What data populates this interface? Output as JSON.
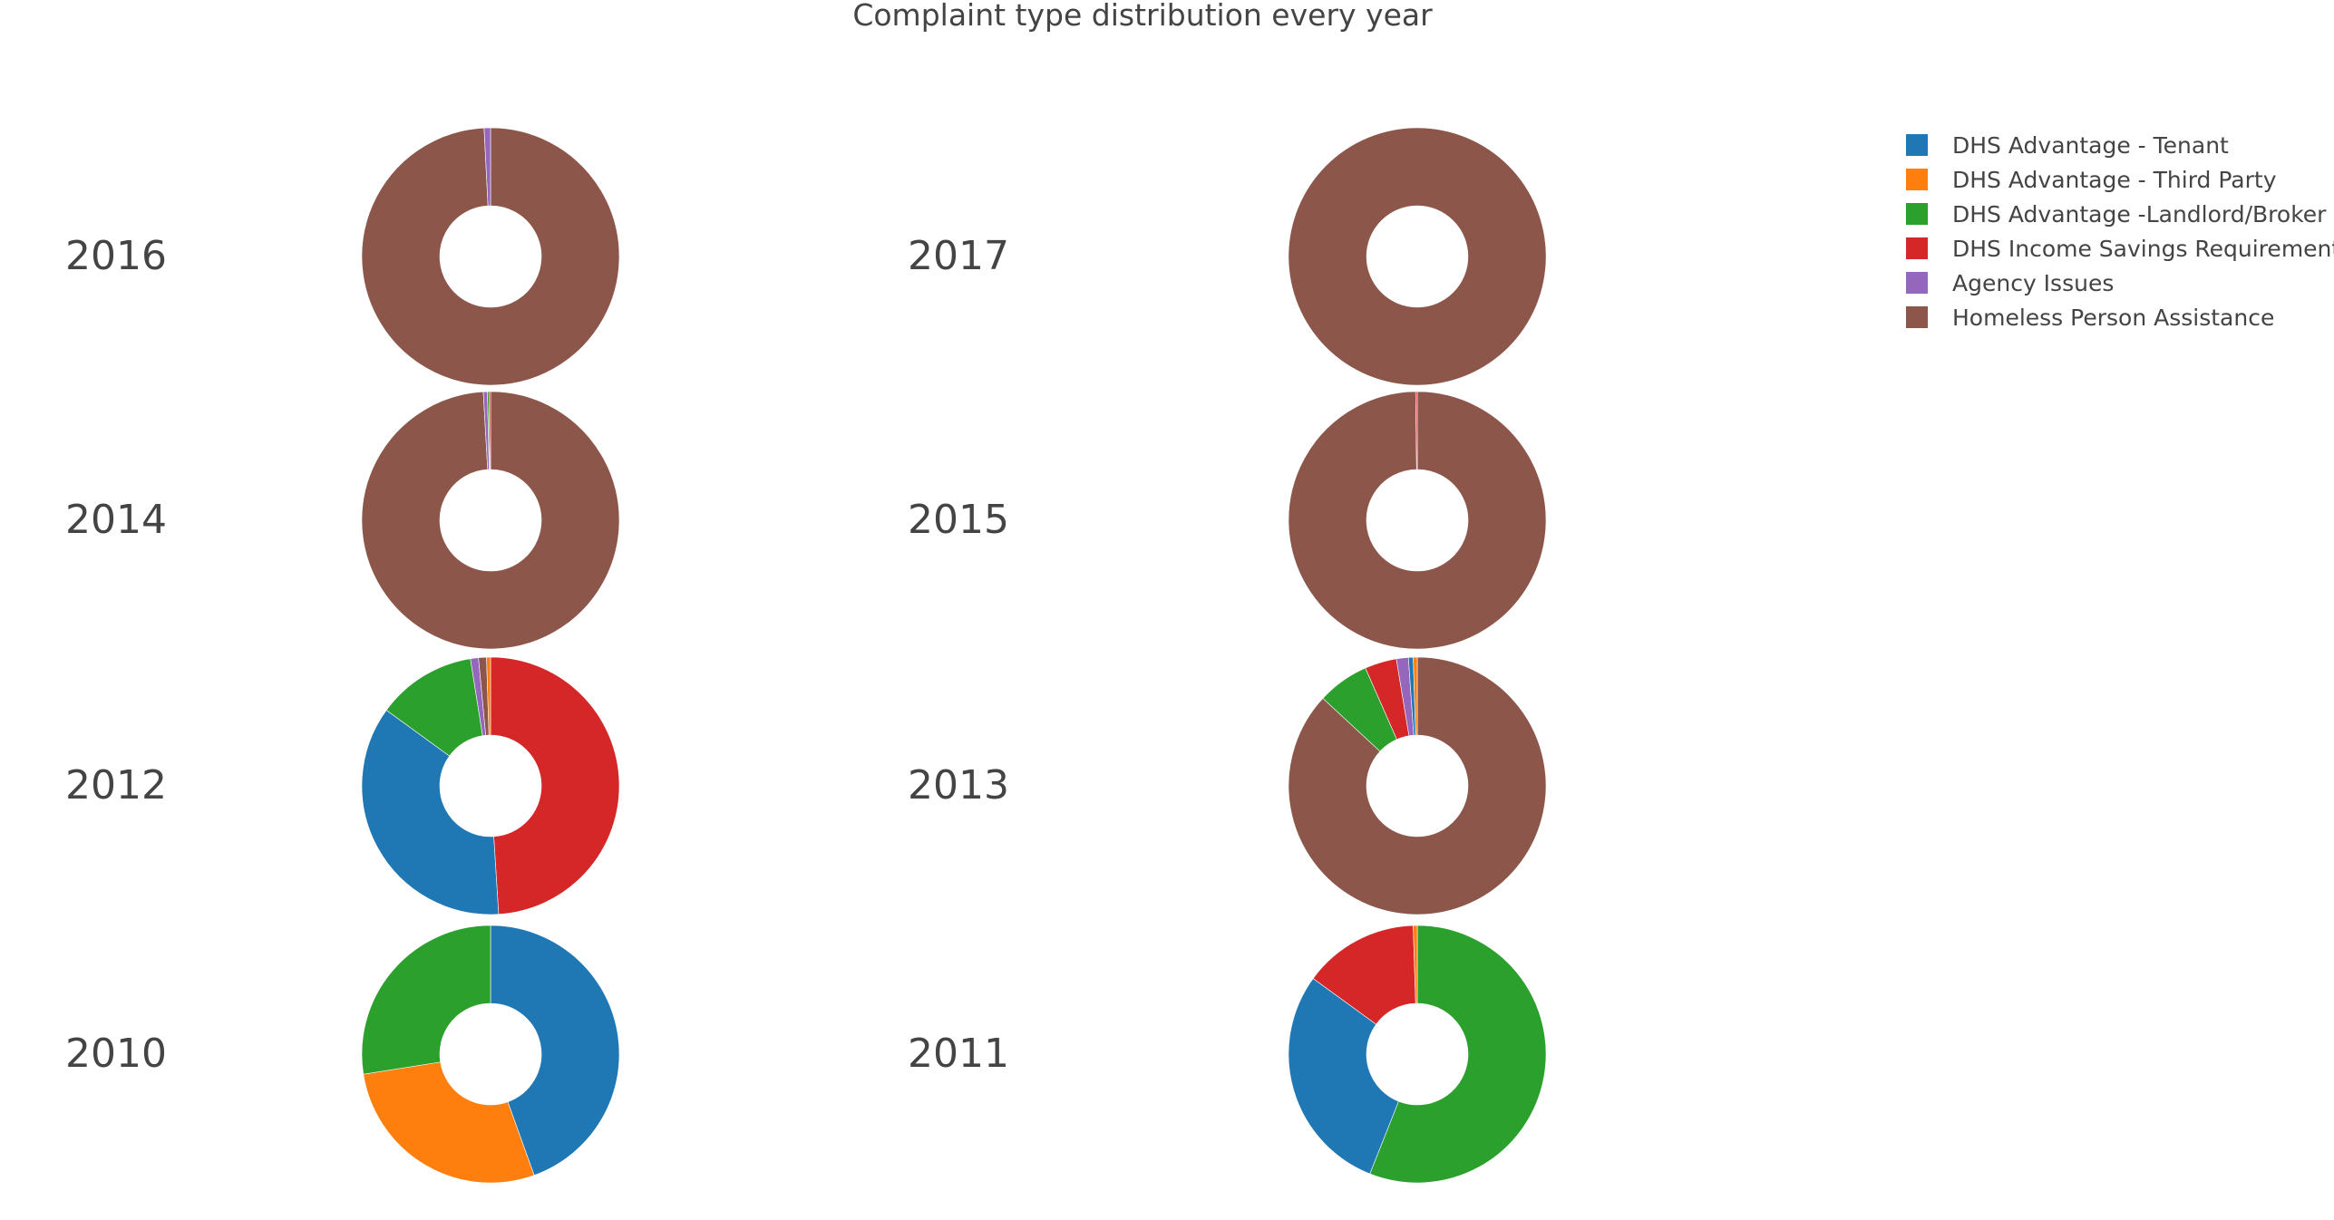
{
  "chart_data": {
    "type": "pie",
    "hole": true,
    "title": "Complaint type distribution every year",
    "legend": {
      "placement": "top-right",
      "entries": [
        {
          "label": "DHS Advantage - Tenant",
          "color": "#1f77b4"
        },
        {
          "label": "DHS Advantage - Third Party",
          "color": "#ff7f0e"
        },
        {
          "label": "DHS Advantage -Landlord/Broker",
          "color": "#2ca02c"
        },
        {
          "label": "DHS Income Savings Requirement",
          "color": "#d62728"
        },
        {
          "label": "Agency Issues",
          "color": "#9467bd"
        },
        {
          "label": "Homeless Person Assistance",
          "color": "#8c564b"
        }
      ]
    },
    "categories": [
      "DHS Advantage - Tenant",
      "DHS Advantage - Third Party",
      "DHS Advantage -Landlord/Broker",
      "DHS Income Savings Requirement",
      "Agency Issues",
      "Homeless Person Assistance"
    ],
    "pies": [
      {
        "year": "2016",
        "values": [
          0,
          0,
          0,
          0,
          0.8,
          99.2
        ]
      },
      {
        "year": "2017",
        "values": [
          0,
          0,
          0,
          0,
          0,
          100
        ]
      },
      {
        "year": "2014",
        "values": [
          0,
          0,
          0.2,
          0.2,
          0.5,
          99.1
        ]
      },
      {
        "year": "2015",
        "values": [
          0,
          0,
          0,
          0.2,
          0,
          99.8
        ]
      },
      {
        "year": "2012",
        "values": [
          36,
          0.5,
          12.5,
          49,
          1,
          1
        ]
      },
      {
        "year": "2013",
        "values": [
          0.6,
          0.5,
          6.5,
          4,
          1.5,
          86.9
        ]
      },
      {
        "year": "2010",
        "values": [
          44.5,
          28,
          27.5,
          0,
          0,
          0
        ]
      },
      {
        "year": "2011",
        "values": [
          29,
          0.5,
          56,
          14.5,
          0,
          0
        ]
      }
    ]
  }
}
